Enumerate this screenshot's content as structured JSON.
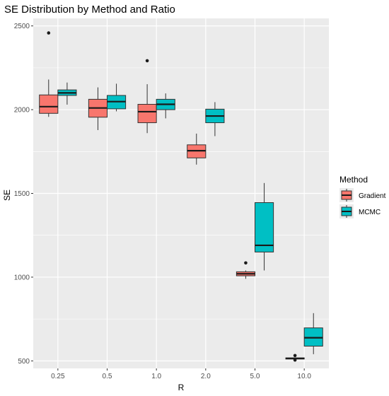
{
  "chart_data": {
    "type": "boxplot",
    "title": "SE Distribution by Method and Ratio",
    "xlabel": "R",
    "ylabel": "SE",
    "categories": [
      "0.25",
      "0.5",
      "1.0",
      "2.0",
      "5.0",
      "10.0"
    ],
    "y_ticks": [
      500,
      1000,
      1500,
      2000,
      2500
    ],
    "ylim": [
      455,
      2545
    ],
    "grid": true,
    "legend": {
      "title": "Method",
      "position": "right"
    },
    "colors": {
      "Gradient": "#F8766D",
      "MCMC": "#00BFC4",
      "panel": "#EBEBEB",
      "grid": "#FFFFFF"
    },
    "series": [
      {
        "name": "Gradient",
        "boxes": [
          {
            "category": "0.25",
            "lower": 1957,
            "q1": 1978,
            "median": 2018,
            "q3": 2088,
            "upper": 2180,
            "outliers": [
              2458
            ]
          },
          {
            "category": "0.5",
            "lower": 1878,
            "q1": 1955,
            "median": 2010,
            "q3": 2062,
            "upper": 2133,
            "outliers": []
          },
          {
            "category": "1.0",
            "lower": 1860,
            "q1": 1922,
            "median": 1988,
            "q3": 2032,
            "upper": 2152,
            "outliers": [
              2292
            ]
          },
          {
            "category": "2.0",
            "lower": 1672,
            "q1": 1712,
            "median": 1755,
            "q3": 1790,
            "upper": 1857,
            "outliers": []
          },
          {
            "category": "5.0",
            "lower": 990,
            "q1": 1008,
            "median": 1020,
            "q3": 1032,
            "upper": 1040,
            "outliers": [
              1085
            ]
          },
          {
            "category": "10.0",
            "lower": 510,
            "q1": 511,
            "median": 515,
            "q3": 518,
            "upper": 520,
            "outliers": [
              505,
              532
            ]
          }
        ]
      },
      {
        "name": "MCMC",
        "boxes": [
          {
            "category": "0.25",
            "lower": 2030,
            "q1": 2085,
            "median": 2100,
            "q3": 2118,
            "upper": 2162,
            "outliers": []
          },
          {
            "category": "0.5",
            "lower": 1990,
            "q1": 2005,
            "median": 2048,
            "q3": 2085,
            "upper": 2155,
            "outliers": []
          },
          {
            "category": "1.0",
            "lower": 1948,
            "q1": 2000,
            "median": 2032,
            "q3": 2062,
            "upper": 2097,
            "outliers": []
          },
          {
            "category": "2.0",
            "lower": 1842,
            "q1": 1922,
            "median": 1962,
            "q3": 2003,
            "upper": 2045,
            "outliers": []
          },
          {
            "category": "5.0",
            "lower": 1040,
            "q1": 1150,
            "median": 1190,
            "q3": 1445,
            "upper": 1562,
            "outliers": []
          },
          {
            "category": "10.0",
            "lower": 540,
            "q1": 588,
            "median": 638,
            "q3": 697,
            "upper": 785,
            "outliers": []
          }
        ]
      }
    ]
  }
}
